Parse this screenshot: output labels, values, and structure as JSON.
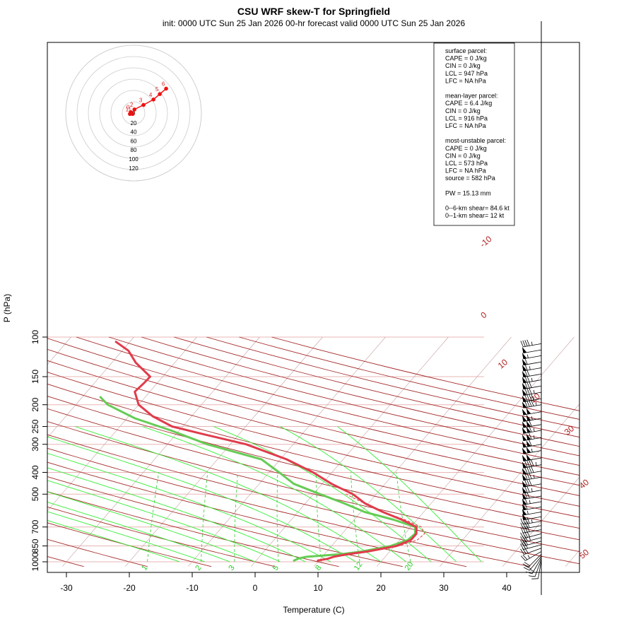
{
  "chart_data": {
    "type": "skew-t",
    "title": "CSU WRF skew-T for Springfield",
    "subtitle": "init: 0000 UTC Sun 25 Jan 2026     00-hr forecast valid 0000 UTC Sun 25 Jan 2026",
    "xlabel": "Temperature (C)",
    "ylabel": "P (hPa)",
    "xlim": [
      -33,
      46
    ],
    "ylim": [
      1050,
      100
    ],
    "x_ticks": [
      -30,
      -20,
      -10,
      0,
      10,
      20,
      30,
      40
    ],
    "p_ticks": [
      100,
      150,
      200,
      250,
      300,
      400,
      500,
      700,
      850,
      1000
    ],
    "isotherm_labels": [
      -10,
      0,
      10,
      20,
      30,
      40,
      50
    ],
    "mixing_ratio_labels": [
      "1",
      "2",
      "3",
      "5",
      "8",
      "12",
      "20"
    ],
    "temperature_profile": [
      {
        "p": 987,
        "t": 9.8
      },
      {
        "p": 970,
        "t": 11.1
      },
      {
        "p": 950,
        "t": 11.8
      },
      {
        "p": 925,
        "t": 13.7
      },
      {
        "p": 900,
        "t": 16.5
      },
      {
        "p": 850,
        "t": 20.3
      },
      {
        "p": 800,
        "t": 21.8
      },
      {
        "p": 750,
        "t": 21.8
      },
      {
        "p": 700,
        "t": 20.9
      },
      {
        "p": 650,
        "t": 17.6
      },
      {
        "p": 600,
        "t": 13.5
      },
      {
        "p": 550,
        "t": 9.5
      },
      {
        "p": 500,
        "t": 6.3
      },
      {
        "p": 450,
        "t": 1.5
      },
      {
        "p": 400,
        "t": -3.0
      },
      {
        "p": 350,
        "t": -9.0
      },
      {
        "p": 300,
        "t": -17.5
      },
      {
        "p": 270,
        "t": -25.8
      },
      {
        "p": 250,
        "t": -31.7
      },
      {
        "p": 225,
        "t": -36.2
      },
      {
        "p": 200,
        "t": -40.0
      },
      {
        "p": 175,
        "t": -42.4
      },
      {
        "p": 160,
        "t": -42.1
      },
      {
        "p": 150,
        "t": -42.0
      },
      {
        "p": 130,
        "t": -46.2
      },
      {
        "p": 115,
        "t": -49.0
      },
      {
        "p": 105,
        "t": -52.2
      }
    ],
    "dewpoint_profile": [
      {
        "p": 987,
        "t": 6.0
      },
      {
        "p": 965,
        "t": 6.5
      },
      {
        "p": 950,
        "t": 7.5
      },
      {
        "p": 925,
        "t": 12.6
      },
      {
        "p": 900,
        "t": 15.6
      },
      {
        "p": 850,
        "t": 19.4
      },
      {
        "p": 800,
        "t": 21.3
      },
      {
        "p": 750,
        "t": 21.6
      },
      {
        "p": 700,
        "t": 20.7
      },
      {
        "p": 650,
        "t": 16.3
      },
      {
        "p": 600,
        "t": 10.6
      },
      {
        "p": 550,
        "t": 6.2
      },
      {
        "p": 500,
        "t": 1.1
      },
      {
        "p": 450,
        "t": -4.5
      },
      {
        "p": 400,
        "t": -8.4
      },
      {
        "p": 350,
        "t": -13.0
      },
      {
        "p": 300,
        "t": -23.7
      },
      {
        "p": 260,
        "t": -31.4
      },
      {
        "p": 230,
        "t": -38.7
      },
      {
        "p": 200,
        "t": -44.9
      },
      {
        "p": 185,
        "t": -47.1
      }
    ],
    "parcel_profile": [
      {
        "p": 987,
        "t": 9.8
      },
      {
        "p": 947,
        "t": 12.5
      },
      {
        "p": 900,
        "t": 17.0
      },
      {
        "p": 850,
        "t": 20.7
      },
      {
        "p": 800,
        "t": 22.8
      },
      {
        "p": 750,
        "t": 23.1
      },
      {
        "p": 700,
        "t": 21.7
      },
      {
        "p": 650,
        "t": 18.1
      },
      {
        "p": 600,
        "t": 13.6
      },
      {
        "p": 550,
        "t": 9.4
      },
      {
        "p": 500,
        "t": 5.2
      }
    ],
    "wind_barbs": [
      {
        "p": 987,
        "dir": 190,
        "spd": 10
      },
      {
        "p": 975,
        "dir": 200,
        "spd": 12
      },
      {
        "p": 960,
        "dir": 210,
        "spd": 14
      },
      {
        "p": 945,
        "dir": 220,
        "spd": 18
      },
      {
        "p": 925,
        "dir": 225,
        "spd": 22
      },
      {
        "p": 900,
        "dir": 240,
        "spd": 25
      },
      {
        "p": 870,
        "dir": 250,
        "spd": 28
      },
      {
        "p": 840,
        "dir": 255,
        "spd": 30
      },
      {
        "p": 810,
        "dir": 255,
        "spd": 32
      },
      {
        "p": 780,
        "dir": 255,
        "spd": 35
      },
      {
        "p": 750,
        "dir": 255,
        "spd": 38
      },
      {
        "p": 720,
        "dir": 260,
        "spd": 40
      },
      {
        "p": 690,
        "dir": 260,
        "spd": 42
      },
      {
        "p": 660,
        "dir": 260,
        "spd": 45
      },
      {
        "p": 630,
        "dir": 260,
        "spd": 50
      },
      {
        "p": 600,
        "dir": 260,
        "spd": 55
      },
      {
        "p": 570,
        "dir": 260,
        "spd": 60
      },
      {
        "p": 540,
        "dir": 260,
        "spd": 65
      },
      {
        "p": 510,
        "dir": 260,
        "spd": 70
      },
      {
        "p": 480,
        "dir": 260,
        "spd": 75
      },
      {
        "p": 450,
        "dir": 260,
        "spd": 80
      },
      {
        "p": 420,
        "dir": 260,
        "spd": 85
      },
      {
        "p": 395,
        "dir": 260,
        "spd": 90
      },
      {
        "p": 370,
        "dir": 260,
        "spd": 95
      },
      {
        "p": 345,
        "dir": 260,
        "spd": 100
      },
      {
        "p": 320,
        "dir": 260,
        "spd": 105
      },
      {
        "p": 300,
        "dir": 260,
        "spd": 110
      },
      {
        "p": 280,
        "dir": 260,
        "spd": 115
      },
      {
        "p": 260,
        "dir": 260,
        "spd": 115
      },
      {
        "p": 245,
        "dir": 260,
        "spd": 110
      },
      {
        "p": 230,
        "dir": 260,
        "spd": 105
      },
      {
        "p": 215,
        "dir": 260,
        "spd": 100
      },
      {
        "p": 200,
        "dir": 260,
        "spd": 95
      },
      {
        "p": 188,
        "dir": 260,
        "spd": 90
      },
      {
        "p": 176,
        "dir": 260,
        "spd": 85
      },
      {
        "p": 165,
        "dir": 260,
        "spd": 80
      },
      {
        "p": 155,
        "dir": 260,
        "spd": 75
      },
      {
        "p": 146,
        "dir": 260,
        "spd": 70
      },
      {
        "p": 137,
        "dir": 260,
        "spd": 65
      },
      {
        "p": 129,
        "dir": 260,
        "spd": 60
      },
      {
        "p": 121,
        "dir": 260,
        "spd": 55
      },
      {
        "p": 114,
        "dir": 260,
        "spd": 50
      },
      {
        "p": 107,
        "dir": 260,
        "spd": 45
      }
    ],
    "hodograph": {
      "rings": [
        "20",
        "40",
        "60",
        "80",
        "100",
        "120"
      ],
      "ring_values": [
        20,
        40,
        60,
        80,
        100,
        120
      ],
      "center_label": "0",
      "points": [
        {
          "label": "0",
          "u": -3,
          "v": 1
        },
        {
          "label": "1",
          "u": -4,
          "v": -1
        },
        {
          "label": "1",
          "u": -1,
          "v": -1
        },
        {
          "label": "2",
          "u": 1,
          "v": 4
        },
        {
          "label": "3",
          "u": 11,
          "v": 9
        },
        {
          "label": "4",
          "u": 22,
          "v": 15
        },
        {
          "label": "5",
          "u": 29,
          "v": 21
        },
        {
          "label": "6",
          "u": 36,
          "v": 27
        }
      ]
    }
  },
  "stats": {
    "lines": [
      "surface parcel:",
      "CAPE = 0 J/kg",
      "CIN = 0 J/kg",
      "LCL = 947 hPa",
      "LFC = NA hPa",
      "",
      "mean-layer parcel:",
      "CAPE = 6.4 J/kg",
      "CIN = 0 J/kg",
      "LCL = 916 hPa",
      "LFC = NA hPa",
      "",
      "most-unstable parcel:",
      "CAPE = 0 J/kg",
      "CIN = 0 J/kg",
      "LCL = 573 hPa",
      "LFC = NA hPa",
      "source = 582 hPa",
      "",
      "PW =  15.13 mm",
      "",
      "0--6-km shear= 84.6 kt",
      "0--1-km shear= 12 kt"
    ]
  },
  "colors": {
    "isotherm": "#b22222",
    "pressure_line": "#e8b4b4",
    "dry_adiabat": "#a52a2a",
    "moist_adiabat": "#33ee33",
    "mixing_ratio": "#33cc33",
    "temperature": "#e03c4c",
    "dewpoint": "#66cc55",
    "hodograph": "#ee1111"
  }
}
